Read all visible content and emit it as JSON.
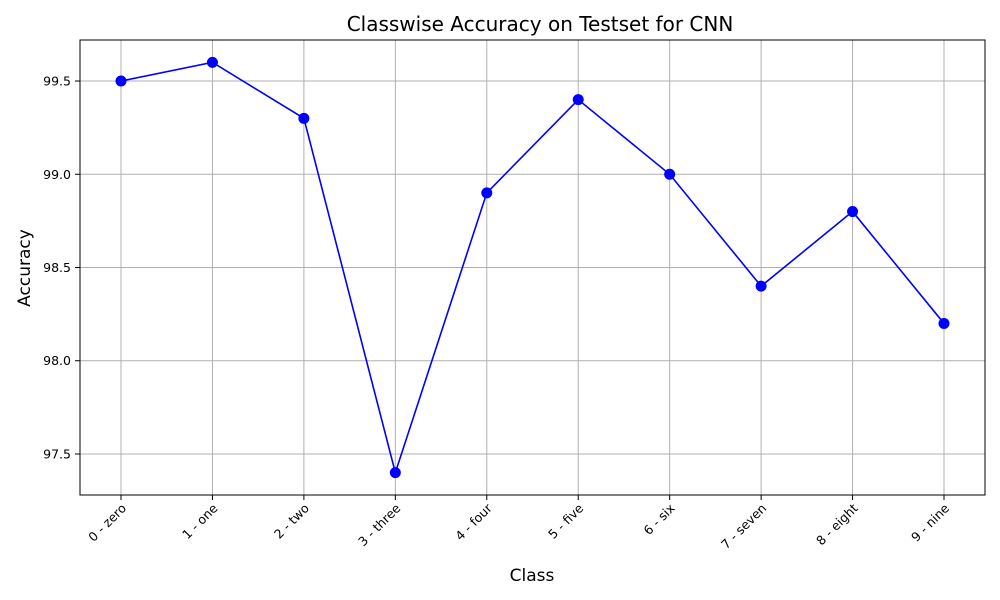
{
  "chart_data": {
    "type": "line",
    "title": "Classwise Accuracy on Testset for CNN",
    "xlabel": "Class",
    "ylabel": "Accuracy",
    "categories": [
      "0 - zero",
      "1 - one",
      "2 - two",
      "3 - three",
      "4 - four",
      "5 - five",
      "6 - six",
      "7 - seven",
      "8 - eight",
      "9 - nine"
    ],
    "series": [
      {
        "values": [
          99.5,
          99.6,
          99.3,
          97.4,
          98.9,
          99.4,
          99.0,
          98.4,
          98.8,
          98.2
        ],
        "color": "#0000ff",
        "marker": "circle"
      }
    ],
    "ylim": [
      97.28,
      99.72
    ],
    "yticks": [
      97.5,
      98.0,
      98.5,
      99.0,
      99.5
    ],
    "ytick_labels": [
      "97.5",
      "98.0",
      "98.5",
      "99.0",
      "99.5"
    ],
    "grid": true,
    "legend": "none"
  }
}
